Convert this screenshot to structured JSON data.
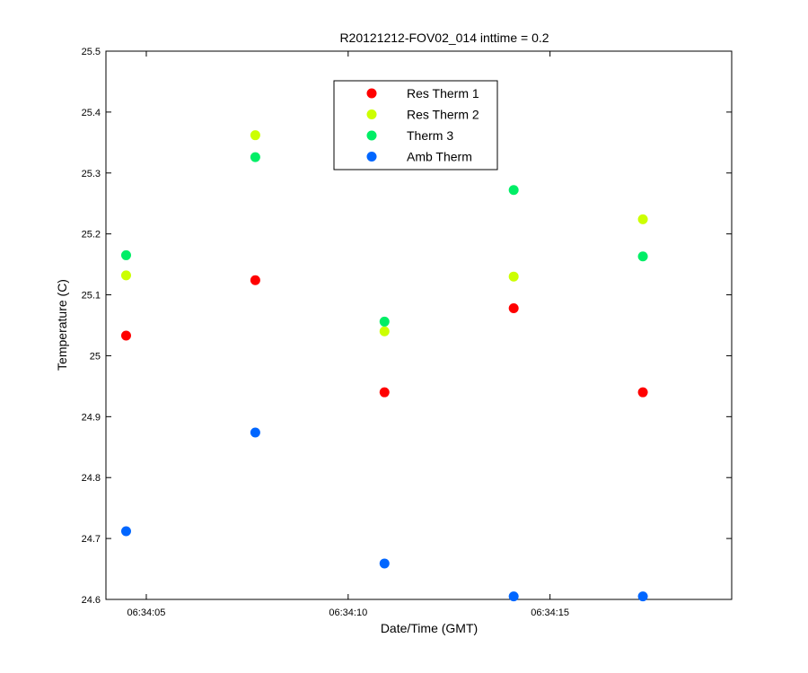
{
  "chart_data": {
    "type": "scatter",
    "title": "R20121212-FOV02_014 inttime = 0.2",
    "xlabel": "Date/Time (GMT)",
    "ylabel": "Temperature (C)",
    "xlim": [
      "06:34:04",
      "06:34:19.5"
    ],
    "ylim": [
      24.6,
      25.5
    ],
    "x_ticks": [
      "06:34:05",
      "06:34:10",
      "06:34:15"
    ],
    "y_ticks": [
      "24.6",
      "24.7",
      "24.8",
      "24.9",
      "25",
      "25.1",
      "25.2",
      "25.3",
      "25.4",
      "25.5"
    ],
    "grid": false,
    "legend_position": "top-center",
    "series": [
      {
        "name": "Res Therm 1",
        "color": "#ff0000",
        "x": [
          "06:34:04.5",
          "06:34:07.7",
          "06:34:10.9",
          "06:34:14.1",
          "06:34:17.3"
        ],
        "y": [
          25.033,
          25.124,
          24.94,
          25.078,
          24.94
        ]
      },
      {
        "name": "Res Therm 2",
        "color": "#ccff00",
        "x": [
          "06:34:04.5",
          "06:34:07.7",
          "06:34:10.9",
          "06:34:14.1",
          "06:34:17.3"
        ],
        "y": [
          25.132,
          25.362,
          25.04,
          25.13,
          25.224
        ]
      },
      {
        "name": "Therm 3",
        "color": "#00ee66",
        "x": [
          "06:34:04.5",
          "06:34:07.7",
          "06:34:10.9",
          "06:34:14.1",
          "06:34:17.3"
        ],
        "y": [
          25.165,
          25.326,
          25.056,
          25.272,
          25.163
        ]
      },
      {
        "name": "Amb Therm",
        "color": "#0066ff",
        "x": [
          "06:34:04.5",
          "06:34:07.7",
          "06:34:10.9",
          "06:34:14.1",
          "06:34:17.3"
        ],
        "y": [
          24.712,
          24.874,
          24.659,
          24.605,
          24.605
        ]
      }
    ]
  }
}
